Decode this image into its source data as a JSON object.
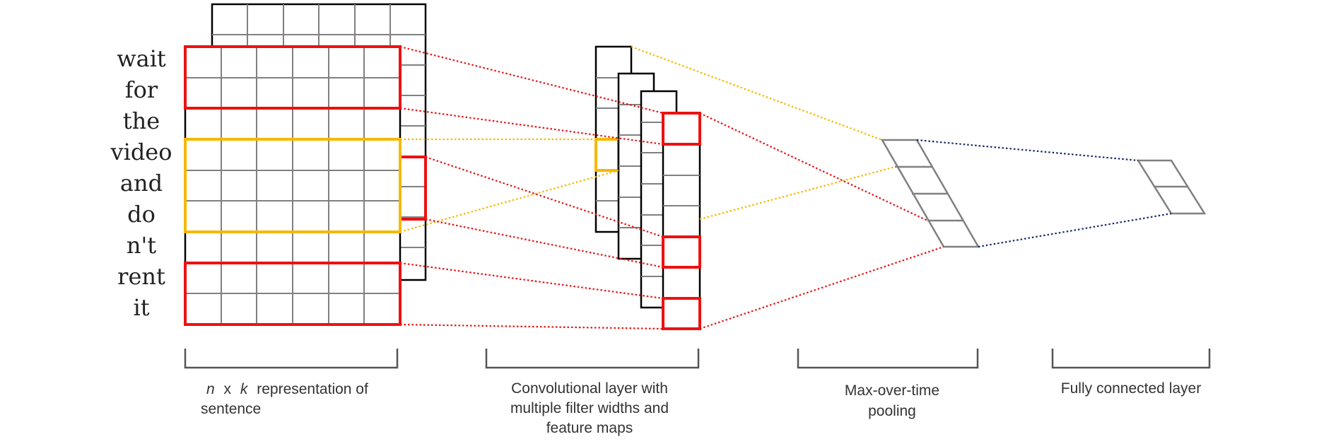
{
  "words": [
    "wait",
    "for",
    "the",
    "video",
    "and",
    "do",
    "n't",
    "rent",
    "it"
  ],
  "captions": {
    "sentence": {
      "var_n": "n",
      "x": "x",
      "var_k": "k",
      "rest": "representation of",
      "line2": "sentence"
    },
    "conv": [
      "Convolutional layer with",
      "multiple filter widths and",
      "feature maps"
    ],
    "pool": [
      "Max-over-time",
      "pooling"
    ],
    "fc": [
      "Fully connected layer"
    ]
  },
  "colors": {
    "red": "#ee1111",
    "yellow": "#f5b800",
    "navy": "#1a2a6c",
    "grid": "#808080"
  }
}
